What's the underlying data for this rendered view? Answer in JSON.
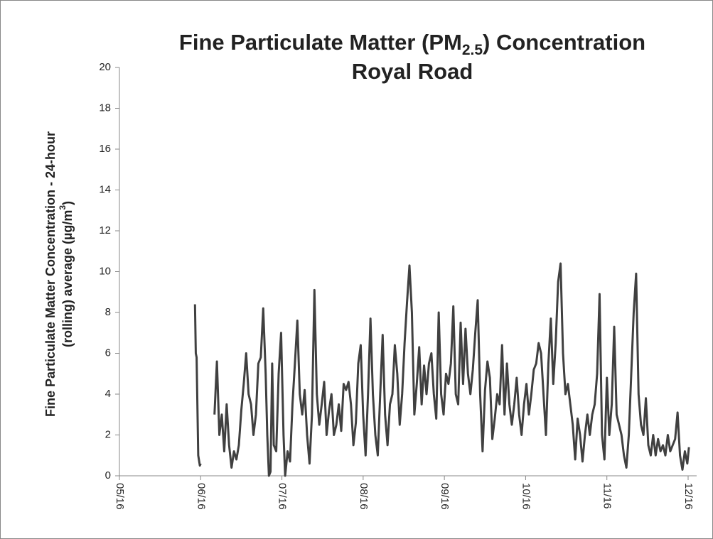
{
  "chart_data": {
    "type": "line",
    "title_parts": [
      "Fine Particulate Matter (PM",
      "2.5",
      ") Concentration"
    ],
    "subtitle": "Royal Road",
    "ylabel_line1": "Fine Particulate Matter Concentration - 24-hour",
    "ylabel_parts": [
      "(rolling) average (µg/m",
      "3",
      ")"
    ],
    "xlim": [
      0,
      7
    ],
    "xticks": [
      {
        "value": 0,
        "label": "05/16"
      },
      {
        "value": 1,
        "label": "06/16"
      },
      {
        "value": 2,
        "label": "07/16"
      },
      {
        "value": 3,
        "label": "08/16"
      },
      {
        "value": 4,
        "label": "09/16"
      },
      {
        "value": 5,
        "label": "10/16"
      },
      {
        "value": 6,
        "label": "11/16"
      },
      {
        "value": 7,
        "label": "12/16"
      }
    ],
    "ylim": [
      0,
      20
    ],
    "yticks": [
      0,
      2,
      4,
      6,
      8,
      10,
      12,
      14,
      16,
      18,
      20
    ],
    "grid": false,
    "x": [
      0.93,
      0.94,
      0.95,
      0.97,
      0.99,
      1.0,
      1.08,
      1.17,
      1.2,
      1.23,
      1.26,
      1.29,
      1.32,
      1.35,
      1.38,
      1.41,
      1.44,
      1.47,
      1.5,
      1.53,
      1.56,
      1.59,
      1.62,
      1.65,
      1.68,
      1.71,
      1.74,
      1.77,
      1.8,
      1.82,
      1.84,
      1.86,
      1.88,
      1.9,
      1.93,
      1.96,
      1.99,
      2.02,
      2.04,
      2.07,
      2.1,
      2.13,
      2.16,
      2.19,
      2.22,
      2.25,
      2.28,
      2.31,
      2.34,
      2.37,
      2.4,
      2.43,
      2.46,
      2.49,
      2.52,
      2.55,
      2.58,
      2.61,
      2.64,
      2.67,
      2.7,
      2.73,
      2.76,
      2.79,
      2.82,
      2.85,
      2.88,
      2.91,
      2.94,
      2.97,
      3.0,
      3.03,
      3.06,
      3.09,
      3.12,
      3.15,
      3.18,
      3.21,
      3.24,
      3.27,
      3.3,
      3.33,
      3.36,
      3.39,
      3.42,
      3.45,
      3.48,
      3.51,
      3.54,
      3.57,
      3.6,
      3.63,
      3.66,
      3.69,
      3.72,
      3.75,
      3.78,
      3.81,
      3.84,
      3.87,
      3.9,
      3.93,
      3.96,
      3.99,
      4.02,
      4.05,
      4.08,
      4.11,
      4.14,
      4.17,
      4.2,
      4.23,
      4.26,
      4.29,
      4.32,
      4.35,
      4.38,
      4.41,
      4.44,
      4.47,
      4.5,
      4.53,
      4.56,
      4.59,
      4.62,
      4.65,
      4.68,
      4.71,
      4.74,
      4.77,
      4.8,
      4.83,
      4.86,
      4.89,
      4.92,
      4.95,
      4.98,
      5.01,
      5.04,
      5.07,
      5.1,
      5.13,
      5.16,
      5.19,
      5.22,
      5.25,
      5.28,
      5.31,
      5.34,
      5.37,
      5.4,
      5.43,
      5.46,
      5.49,
      5.52,
      5.55,
      5.58,
      5.61,
      5.64,
      5.67,
      5.7,
      5.73,
      5.76,
      5.79,
      5.82,
      5.85,
      5.88,
      5.91,
      5.94,
      5.97,
      6.0,
      6.03,
      6.06,
      6.09,
      6.12,
      6.15,
      6.18,
      6.21,
      6.24,
      6.27,
      6.3,
      6.33,
      6.36,
      6.39,
      6.42,
      6.45,
      6.48,
      6.51,
      6.54,
      6.57,
      6.6,
      6.63,
      6.66,
      6.69,
      6.72,
      6.75,
      6.78,
      6.81,
      6.84,
      6.87,
      6.9,
      6.93,
      6.96,
      6.99,
      7.01
    ],
    "series": [
      {
        "color": "#404040",
        "values": [
          8.4,
          6.0,
          5.8,
          1.0,
          0.5,
          0.6,
          null,
          3.0,
          5.6,
          2.0,
          3.0,
          1.2,
          3.5,
          1.5,
          0.4,
          1.2,
          0.8,
          1.5,
          3.2,
          4.5,
          6.0,
          4.0,
          3.5,
          2.0,
          3.0,
          5.5,
          5.8,
          8.2,
          5.0,
          2.0,
          0.0,
          0.2,
          5.5,
          1.5,
          1.2,
          5.0,
          7.0,
          2.0,
          0.0,
          1.2,
          0.7,
          3.5,
          5.5,
          7.6,
          4.0,
          3.0,
          4.2,
          2.0,
          0.6,
          3.0,
          9.1,
          4.0,
          2.5,
          3.5,
          4.6,
          2.0,
          3.2,
          4.0,
          2.0,
          2.5,
          3.5,
          2.2,
          4.5,
          4.2,
          4.6,
          3.5,
          1.5,
          2.6,
          5.5,
          6.4,
          3.0,
          1.0,
          4.0,
          7.7,
          4.0,
          2.0,
          1.0,
          4.0,
          6.9,
          3.0,
          1.5,
          3.5,
          4.0,
          6.4,
          5.0,
          2.5,
          4.0,
          6.5,
          8.5,
          10.3,
          8.0,
          3.0,
          4.5,
          6.3,
          3.5,
          5.4,
          4.0,
          5.5,
          6.0,
          4.0,
          2.8,
          8.0,
          4.0,
          3.0,
          5.0,
          4.5,
          5.5,
          8.3,
          4.0,
          3.5,
          7.5,
          4.5,
          7.2,
          5.0,
          4.0,
          5.2,
          7.0,
          8.6,
          4.0,
          1.2,
          4.2,
          5.6,
          4.8,
          1.8,
          2.8,
          4.0,
          3.5,
          6.4,
          3.0,
          5.5,
          3.5,
          2.5,
          3.5,
          4.8,
          3.0,
          2.0,
          3.5,
          4.5,
          3.0,
          4.0,
          5.2,
          5.5,
          6.5,
          6.0,
          4.0,
          2.0,
          5.5,
          7.7,
          4.5,
          6.5,
          9.5,
          10.4,
          6.0,
          4.0,
          4.5,
          3.5,
          2.5,
          0.8,
          2.8,
          2.0,
          0.7,
          2.0,
          3.0,
          2.0,
          3.0,
          3.5,
          5.0,
          8.9,
          2.0,
          0.8,
          4.8,
          2.0,
          3.5,
          7.3,
          3.0,
          2.5,
          2.0,
          1.0,
          0.4,
          2.0,
          5.0,
          8.0,
          9.9,
          4.0,
          2.5,
          2.0,
          3.8,
          1.5,
          1.0,
          2.0,
          1.0,
          1.8,
          1.2,
          1.5,
          1.0,
          2.0,
          1.2,
          1.5,
          1.8,
          3.1,
          1.0,
          0.3,
          1.2,
          0.6,
          1.4
        ]
      }
    ]
  }
}
